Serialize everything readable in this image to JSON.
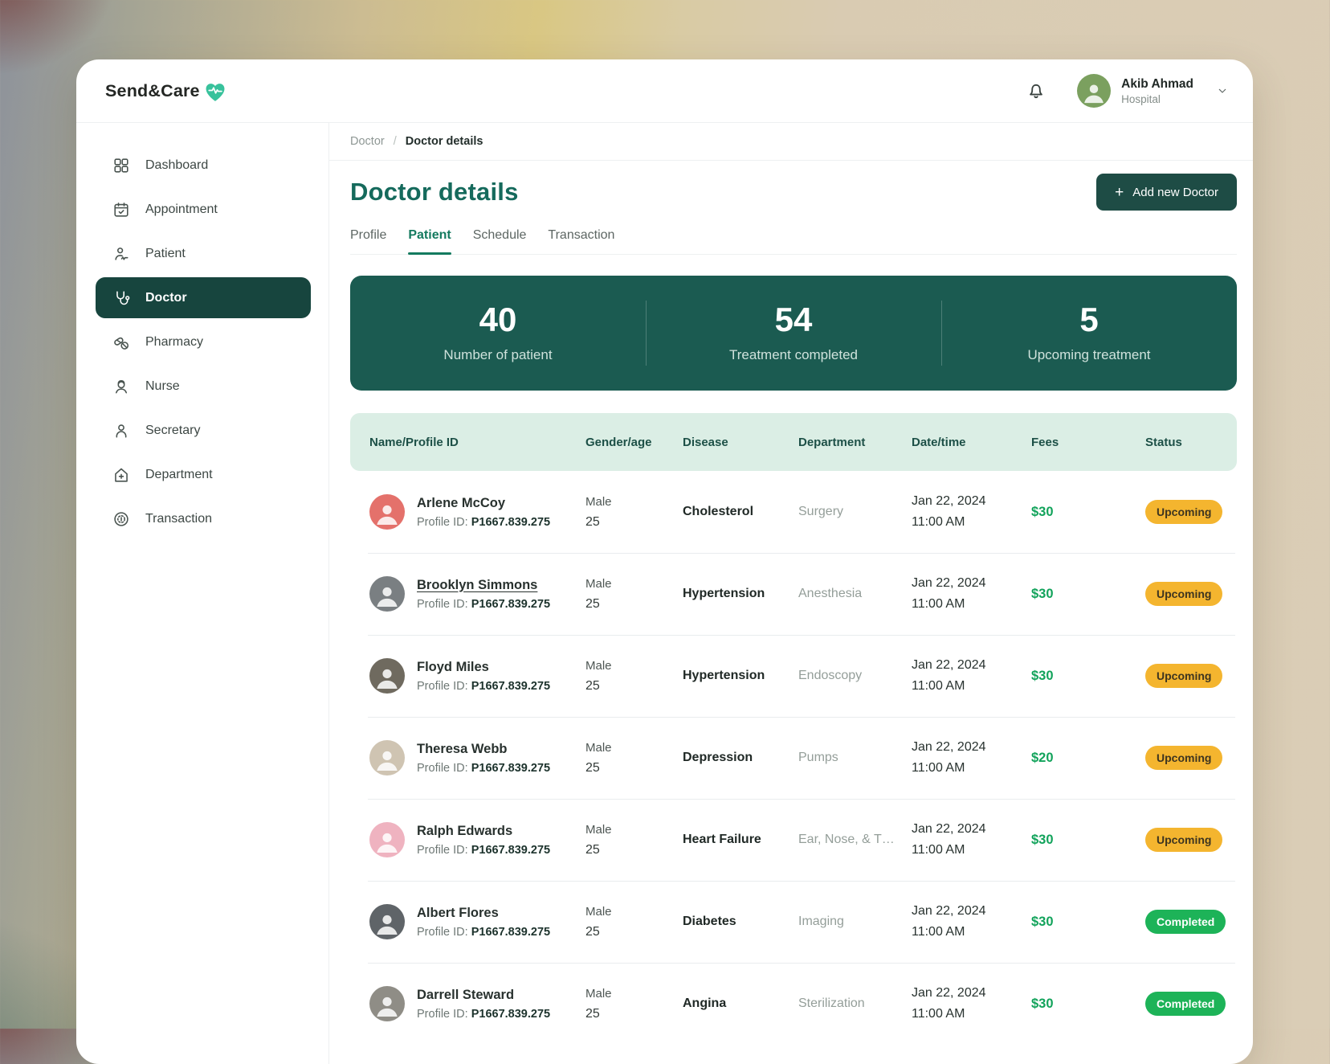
{
  "brand": {
    "name": "Send&Care"
  },
  "header": {
    "user": {
      "name": "Akib Ahmad",
      "role": "Hospital"
    }
  },
  "sidebar": {
    "items": [
      {
        "label": "Dashboard",
        "icon": "dashboard-icon",
        "active": false
      },
      {
        "label": "Appointment",
        "icon": "appointment-icon",
        "active": false
      },
      {
        "label": "Patient",
        "icon": "patient-icon",
        "active": false
      },
      {
        "label": "Doctor",
        "icon": "doctor-icon",
        "active": true
      },
      {
        "label": "Pharmacy",
        "icon": "pharmacy-icon",
        "active": false
      },
      {
        "label": "Nurse",
        "icon": "nurse-icon",
        "active": false
      },
      {
        "label": "Secretary",
        "icon": "secretary-icon",
        "active": false
      },
      {
        "label": "Department",
        "icon": "department-icon",
        "active": false
      },
      {
        "label": "Transaction",
        "icon": "transaction-icon",
        "active": false
      }
    ]
  },
  "breadcrumb": {
    "parent": "Doctor",
    "separator": "/",
    "current": "Doctor details"
  },
  "page": {
    "title": "Doctor details",
    "add_button": {
      "icon": "+",
      "label": "Add new Doctor"
    }
  },
  "tabs": [
    {
      "label": "Profile",
      "active": false
    },
    {
      "label": "Patient",
      "active": true
    },
    {
      "label": "Schedule",
      "active": false
    },
    {
      "label": "Transaction",
      "active": false
    }
  ],
  "stats": [
    {
      "value": "40",
      "label": "Number of patient"
    },
    {
      "value": "54",
      "label": "Treatment completed"
    },
    {
      "value": "5",
      "label": "Upcoming treatment"
    }
  ],
  "table": {
    "columns": [
      "Name/Profile ID",
      "Gender/age",
      "Disease",
      "Department",
      "Date/time",
      "Fees",
      "Status"
    ],
    "profile_id_label": "Profile ID:",
    "rows": [
      {
        "name": "Arlene McCoy",
        "name_underlined": false,
        "profile_id": "P1667.839.275",
        "gender": "Male",
        "age": "25",
        "disease": "Cholesterol",
        "department": "Surgery",
        "date": "Jan 22, 2024",
        "time": "11:00 AM",
        "fees": "$30",
        "status": "Upcoming",
        "status_type": "upcoming",
        "avatar_color": "#e4716b"
      },
      {
        "name": "Brooklyn Simmons",
        "name_underlined": true,
        "profile_id": "P1667.839.275",
        "gender": "Male",
        "age": "25",
        "disease": "Hypertension",
        "department": "Anesthesia",
        "date": "Jan 22, 2024",
        "time": "11:00 AM",
        "fees": "$30",
        "status": "Upcoming",
        "status_type": "upcoming",
        "avatar_color": "#7a7f82"
      },
      {
        "name": "Floyd Miles",
        "name_underlined": false,
        "profile_id": "P1667.839.275",
        "gender": "Male",
        "age": "25",
        "disease": "Hypertension",
        "department": "Endoscopy",
        "date": "Jan 22, 2024",
        "time": "11:00 AM",
        "fees": "$30",
        "status": "Upcoming",
        "status_type": "upcoming",
        "avatar_color": "#6f6a5f"
      },
      {
        "name": "Theresa Webb",
        "name_underlined": false,
        "profile_id": "P1667.839.275",
        "gender": "Male",
        "age": "25",
        "disease": "Depression",
        "department": "Pumps",
        "date": "Jan 22, 2024",
        "time": "11:00 AM",
        "fees": "$20",
        "status": "Upcoming",
        "status_type": "upcoming",
        "avatar_color": "#cfc4b2"
      },
      {
        "name": "Ralph Edwards",
        "name_underlined": false,
        "profile_id": "P1667.839.275",
        "gender": "Male",
        "age": "25",
        "disease": "Heart Failure",
        "department": "Ear, Nose, & T…",
        "date": "Jan 22, 2024",
        "time": "11:00 AM",
        "fees": "$30",
        "status": "Upcoming",
        "status_type": "upcoming",
        "avatar_color": "#efb3c0"
      },
      {
        "name": "Albert Flores",
        "name_underlined": false,
        "profile_id": "P1667.839.275",
        "gender": "Male",
        "age": "25",
        "disease": "Diabetes",
        "department": "Imaging",
        "date": "Jan 22, 2024",
        "time": "11:00 AM",
        "fees": "$30",
        "status": "Completed",
        "status_type": "completed",
        "avatar_color": "#5f6468"
      },
      {
        "name": "Darrell Steward",
        "name_underlined": false,
        "profile_id": "P1667.839.275",
        "gender": "Male",
        "age": "25",
        "disease": "Angina",
        "department": "Sterilization",
        "date": "Jan 22, 2024",
        "time": "11:00 AM",
        "fees": "$30",
        "status": "Completed",
        "status_type": "completed",
        "avatar_color": "#8f8d86"
      }
    ]
  },
  "colors": {
    "accent_dark_teal": "#17453e",
    "stats_background": "#1b5b51",
    "title_teal": "#156a5c",
    "tab_active": "#147a5f",
    "table_header_bg": "#dbeee5",
    "fees_green": "#12a35b",
    "badge_upcoming_bg": "#f4b52f",
    "badge_completed_bg": "#1db358",
    "logo_heart": "#38c29c"
  }
}
